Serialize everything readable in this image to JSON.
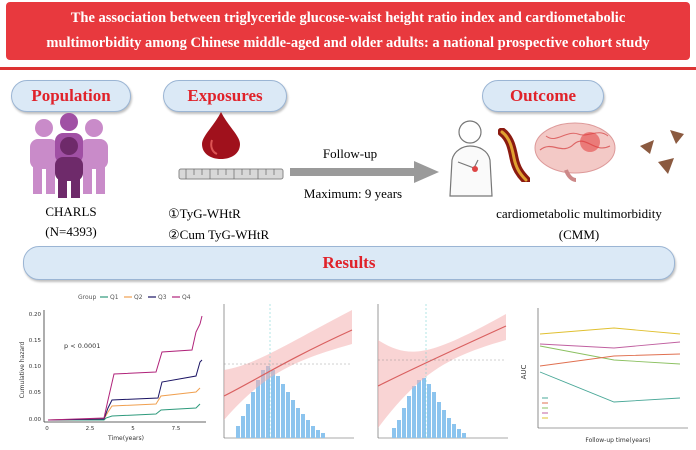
{
  "title": {
    "line1": "The association between triglyceride glucose-waist height ratio index and cardiometabolic",
    "line2": "multimorbidity among Chinese middle-aged and older adults: a national prospective cohort study"
  },
  "sections": {
    "population": "Population",
    "exposures": "Exposures",
    "outcome": "Outcome",
    "results": "Results"
  },
  "population": {
    "name": "CHARLS",
    "n": "(N=4393)"
  },
  "exposures": {
    "item1": "①TyG-WHtR",
    "item2": "②Cum TyG-WHtR"
  },
  "followup": {
    "label": "Follow-up",
    "max": "Maximum: 9 years"
  },
  "outcome": {
    "line1": "cardiometabolic multimorbidity",
    "line2": "(CMM)"
  },
  "colors": {
    "title_bg": "#e8393e",
    "pill_bg": "#dbe9f6",
    "accent_red": "#e0222a",
    "arrow": "#999999"
  },
  "km_plot": {
    "legend_title": "Group",
    "legend": [
      "Q1",
      "Q2",
      "Q3",
      "Q4"
    ],
    "colors": [
      "#2e9a7c",
      "#f0a050",
      "#1b1464",
      "#b0237a"
    ],
    "pvalue": "p < 0.0001",
    "ylabel": "Cumulative hazard",
    "xlabel": "Time(years)",
    "yticks": [
      "0.20",
      "0.15",
      "0.10",
      "0.05",
      "0.00"
    ],
    "xticks": [
      "0",
      "2.5",
      "5",
      "7.5"
    ]
  },
  "auc_plot": {
    "ylabel": "AUC",
    "xlabel": "Follow-up time(years)"
  }
}
